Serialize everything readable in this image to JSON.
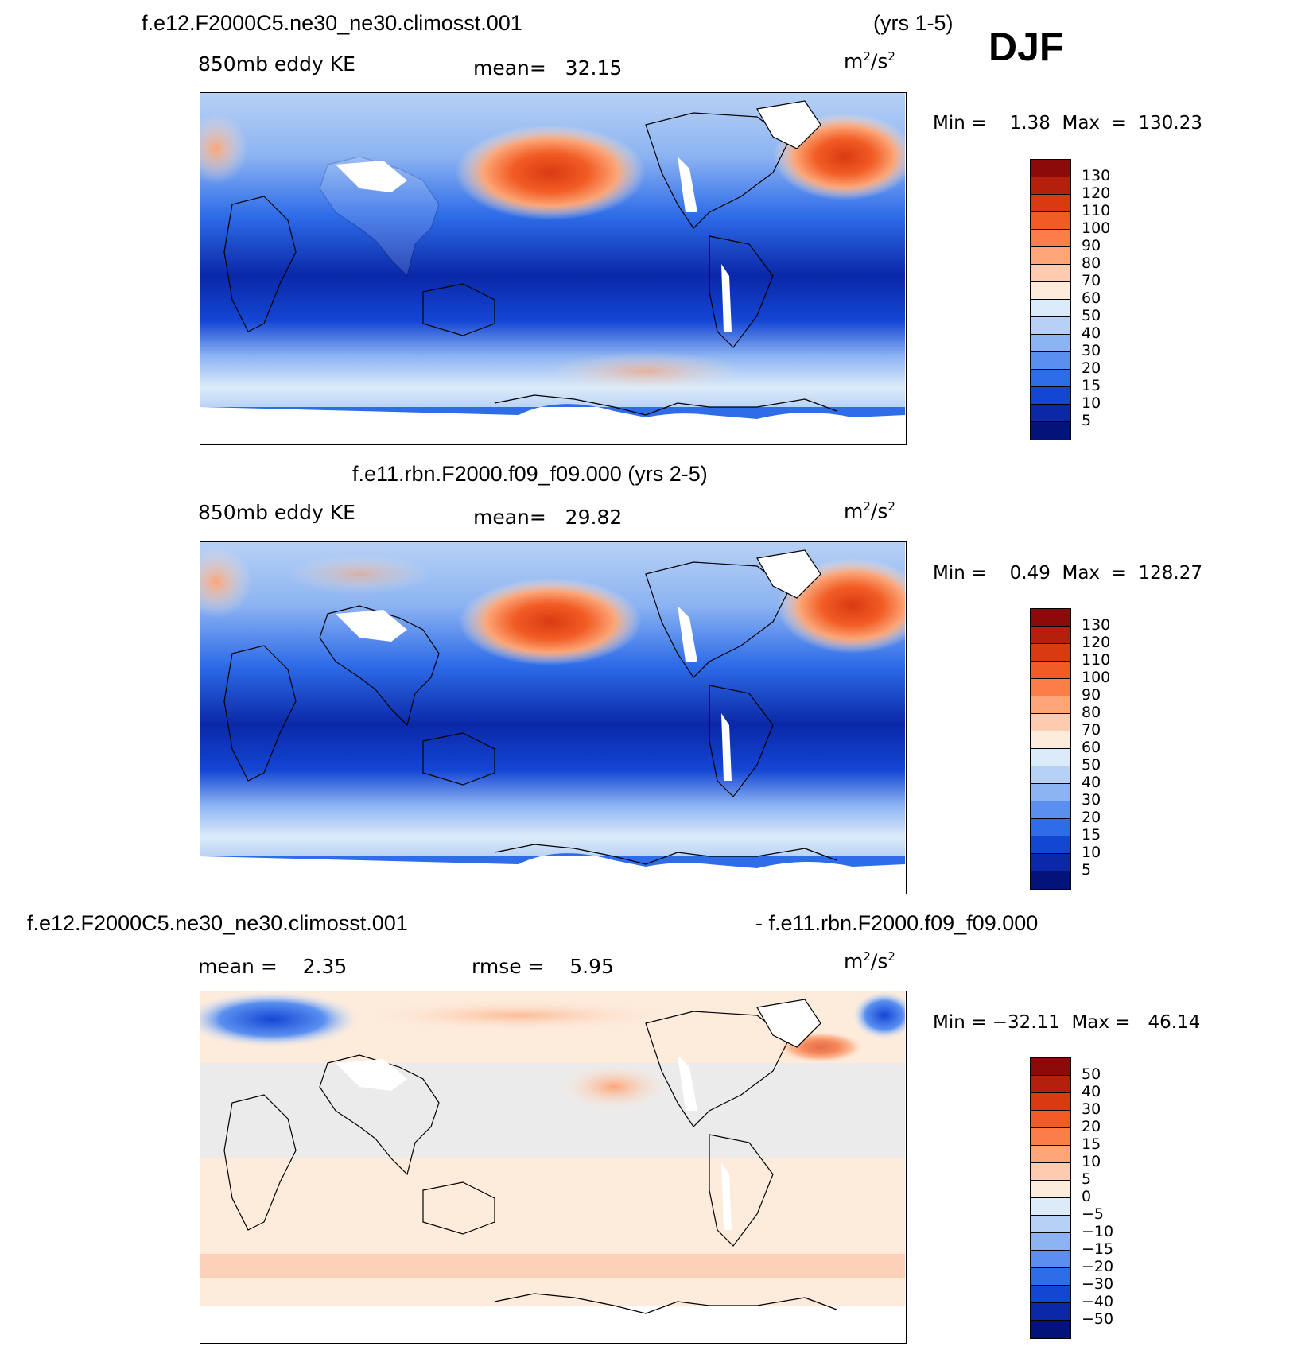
{
  "header": {
    "case_title": "f.e12.F2000C5.ne30_ne30.climosst.001",
    "years_label": "(yrs 1-5)",
    "season": "DJF"
  },
  "panels": [
    {
      "variable": "850mb eddy KE",
      "mean_text": "mean=   32.15",
      "units_base": "m",
      "units_exp": "2",
      "units_mid": "/s",
      "units_exp2": "2",
      "stats_text": "Min =    1.38  Max  =  130.23",
      "colorbar_labels": [
        "130",
        "120",
        "110",
        "100",
        "90",
        "80",
        "70",
        "60",
        "50",
        "40",
        "30",
        "20",
        "15",
        "10",
        "5"
      ],
      "colorbar_colors": [
        "#8c0a0a",
        "#b5200c",
        "#d93a12",
        "#f25c24",
        "#fa7d4a",
        "#fca577",
        "#fdcbb0",
        "#fdebdc",
        "#dcebf9",
        "#b7d1f5",
        "#8cb3f2",
        "#5a8ff0",
        "#2e6ce8",
        "#1446d4",
        "#0a28a8",
        "#04137a"
      ],
      "map_title": "f.e12.F2000C5.ne30_ne30.climosst.001 (yrs 1-5)"
    },
    {
      "title": "f.e11.rbn.F2000.f09_f09.000 (yrs 2-5)",
      "variable": "850mb eddy KE",
      "mean_text": "mean=   29.82",
      "units_base": "m",
      "units_exp": "2",
      "units_mid": "/s",
      "units_exp2": "2",
      "stats_text": "Min =    0.49  Max  =  128.27",
      "colorbar_labels": [
        "130",
        "120",
        "110",
        "100",
        "90",
        "80",
        "70",
        "60",
        "50",
        "40",
        "30",
        "20",
        "15",
        "10",
        "5"
      ],
      "colorbar_colors": [
        "#8c0a0a",
        "#b5200c",
        "#d93a12",
        "#f25c24",
        "#fa7d4a",
        "#fca577",
        "#fdcbb0",
        "#fdebdc",
        "#dcebf9",
        "#b7d1f5",
        "#8cb3f2",
        "#5a8ff0",
        "#2e6ce8",
        "#1446d4",
        "#0a28a8",
        "#04137a"
      ]
    },
    {
      "title_left": "f.e12.F2000C5.ne30_ne30.climosst.001",
      "title_right": "- f.e11.rbn.F2000.f09_f09.000",
      "mean_text": "mean =    2.35",
      "rmse_text": "rmse =    5.95",
      "units_base": "m",
      "units_exp": "2",
      "units_mid": "/s",
      "units_exp2": "2",
      "stats_text": "Min = −32.11  Max =   46.14",
      "colorbar_labels": [
        "50",
        "40",
        "30",
        "20",
        "15",
        "10",
        "5",
        "0",
        "−5",
        "−10",
        "−15",
        "−20",
        "−30",
        "−40",
        "−50"
      ],
      "colorbar_colors": [
        "#8c0a0a",
        "#b5200c",
        "#d93a12",
        "#f25c24",
        "#fa7d4a",
        "#fca577",
        "#fdcbb0",
        "#fdebdc",
        "#dcebf9",
        "#b7d1f5",
        "#8cb3f2",
        "#5a8ff0",
        "#2e6ce8",
        "#1446d4",
        "#0a28a8",
        "#04137a"
      ]
    }
  ]
}
